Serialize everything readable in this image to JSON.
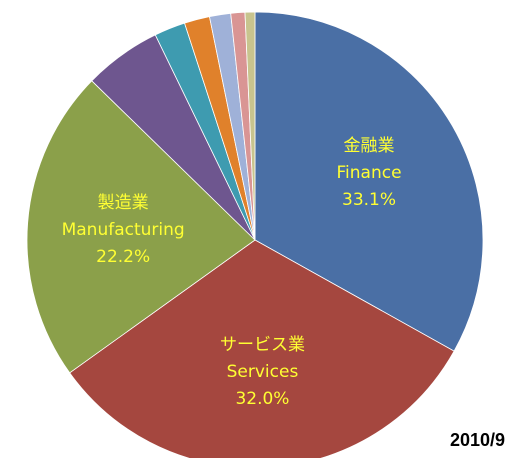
{
  "chart_data": {
    "type": "pie",
    "categories": [
      "金融業",
      "サービス業",
      "製造業",
      null,
      null,
      null,
      null,
      null,
      null
    ],
    "categories_en": [
      "Finance",
      "Services",
      "Manufacturing",
      null,
      null,
      null,
      null,
      null,
      null
    ],
    "values": [
      33.1,
      32.0,
      22.2,
      5.5,
      2.2,
      1.8,
      1.5,
      1.0,
      0.7
    ],
    "value_labels": [
      "33.1%",
      "32.0%",
      "22.2%",
      null,
      null,
      null,
      null,
      null,
      null
    ],
    "colors": [
      "#4a6fa5",
      "#a5473f",
      "#8ba04a",
      "#6e568f",
      "#3e9bb0",
      "#e0812b",
      "#9fb1d8",
      "#d99594",
      "#c8c48e"
    ],
    "annotation": "2010/9"
  }
}
